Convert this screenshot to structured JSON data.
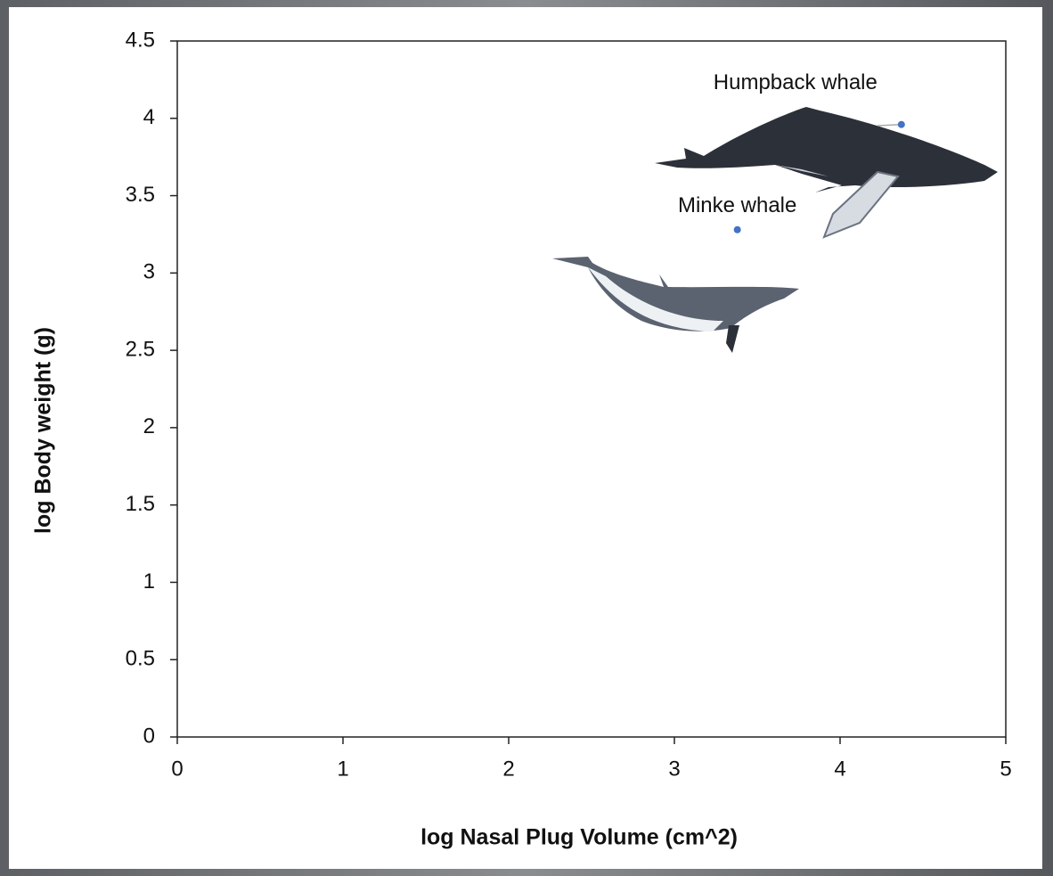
{
  "chart_data": {
    "type": "scatter",
    "x_label": "log Nasal Plug Volume (cm^2)",
    "y_label": "log Body weight (g)",
    "labels": [
      "Humpback whale",
      "Minke whale"
    ],
    "x": [
      4.37,
      3.38
    ],
    "values": [
      3.96,
      3.28
    ],
    "color": "#4472c4",
    "xlim": [
      0,
      5
    ],
    "ylim": [
      0,
      4.5
    ],
    "xticks": [
      0,
      1,
      2,
      3,
      4,
      5
    ],
    "yticks": [
      0,
      0.5,
      1,
      1.5,
      2,
      2.5,
      3,
      3.5,
      4,
      4.5
    ]
  }
}
